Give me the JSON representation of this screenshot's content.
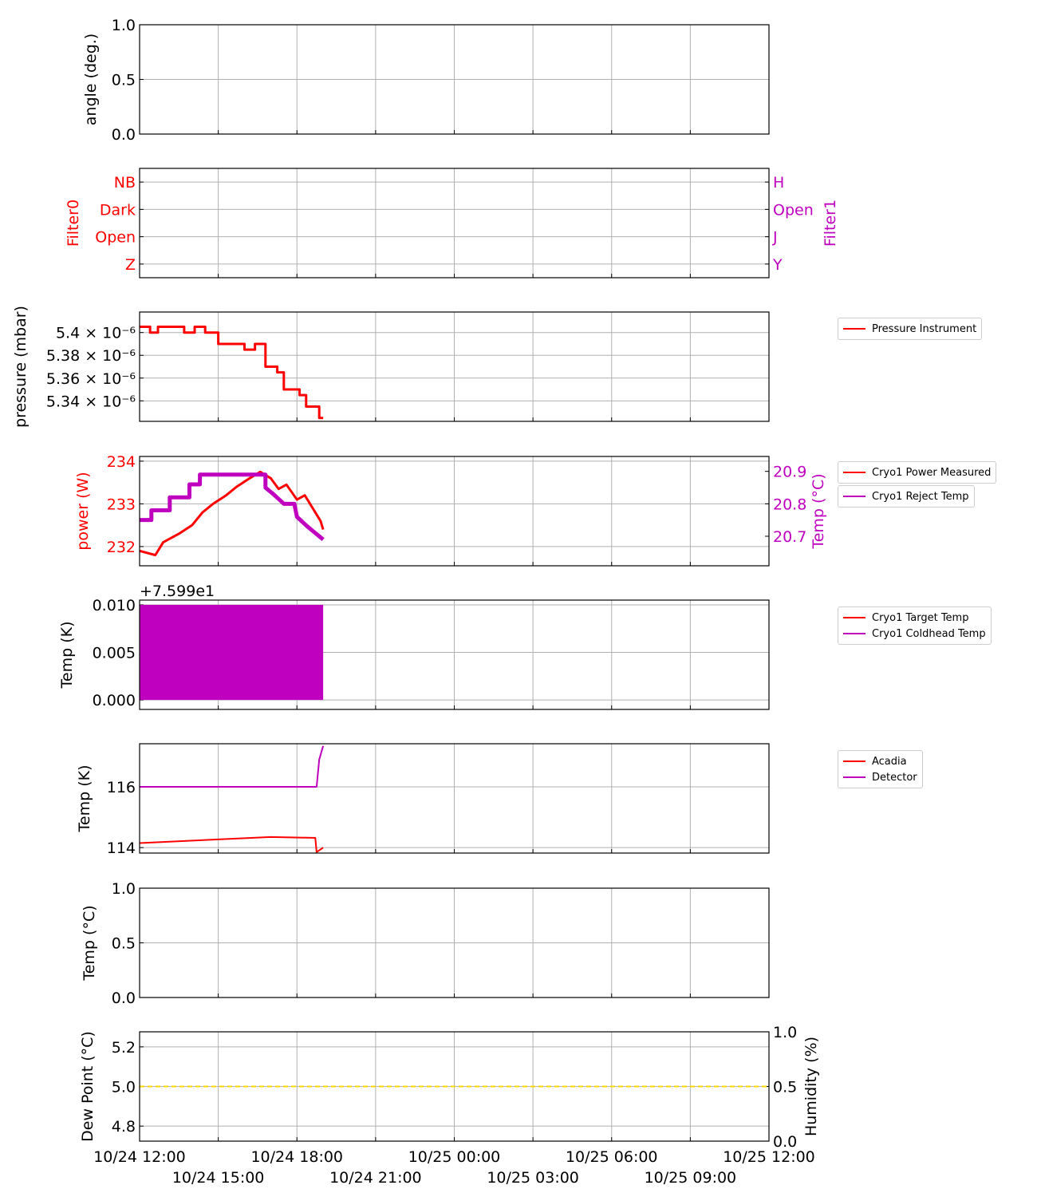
{
  "chart_data": [
    {
      "type": "line",
      "ylabel": "angle (deg.)",
      "ylim": [
        0,
        1
      ],
      "yticks": [
        0,
        0.5,
        1.0
      ],
      "ytick_labels": [
        "0.0",
        "0.5",
        "1.0"
      ],
      "series": []
    },
    {
      "type": "line",
      "ylabel": "Filter0",
      "ylabel_color": "#ff0000",
      "ylim": [
        -0.5,
        3.5
      ],
      "yticks": [
        0,
        1,
        2,
        3
      ],
      "ytick_labels": [
        "Z",
        "Open",
        "Dark",
        "NB"
      ],
      "y2label": "Filter1",
      "y2label_color": "#bf00bf",
      "y2lim": [
        -0.5,
        3.5
      ],
      "y2ticks": [
        0,
        1,
        2,
        3
      ],
      "y2tick_labels": [
        "Y",
        "J",
        "Open",
        "H"
      ],
      "series": []
    },
    {
      "type": "line",
      "ylabel": "pressure (mbar)",
      "ylim": [
        5.322,
        5.418
      ],
      "yticks": [
        5.34,
        5.36,
        5.38,
        5.4
      ],
      "ytick_labels": [
        "5.34 × 10⁻⁶",
        "5.36 × 10⁻⁶",
        "5.38 × 10⁻⁶",
        "5.4 × 10⁻⁶"
      ],
      "series": [
        {
          "name": "Pressure Instrument",
          "color": "#ff0000",
          "width": 3,
          "points": [
            [
              0,
              5.405
            ],
            [
              0.4,
              5.405
            ],
            [
              0.4,
              5.4
            ],
            [
              0.7,
              5.4
            ],
            [
              0.7,
              5.405
            ],
            [
              1.7,
              5.405
            ],
            [
              1.7,
              5.4
            ],
            [
              2.1,
              5.4
            ],
            [
              2.1,
              5.405
            ],
            [
              2.5,
              5.405
            ],
            [
              2.5,
              5.4
            ],
            [
              3.0,
              5.4
            ],
            [
              3.0,
              5.39
            ],
            [
              4.0,
              5.39
            ],
            [
              4.0,
              5.385
            ],
            [
              4.4,
              5.385
            ],
            [
              4.4,
              5.39
            ],
            [
              4.8,
              5.39
            ],
            [
              4.8,
              5.37
            ],
            [
              5.25,
              5.37
            ],
            [
              5.25,
              5.365
            ],
            [
              5.5,
              5.365
            ],
            [
              5.5,
              5.35
            ],
            [
              6.1,
              5.35
            ],
            [
              6.1,
              5.345
            ],
            [
              6.35,
              5.345
            ],
            [
              6.35,
              5.335
            ],
            [
              6.85,
              5.335
            ],
            [
              6.85,
              5.325
            ],
            [
              7.0,
              5.325
            ]
          ]
        }
      ]
    },
    {
      "type": "line",
      "ylabel": "power (W)",
      "ylabel_color": "#ff0000",
      "ylim": [
        231.55,
        234.11
      ],
      "yticks": [
        232,
        233,
        234
      ],
      "ytick_labels": [
        "232",
        "233",
        "234"
      ],
      "y2label": "Temp (°C)",
      "y2label_color": "#bf00bf",
      "y2lim": [
        20.609,
        20.946
      ],
      "y2ticks": [
        20.7,
        20.8,
        20.9
      ],
      "y2tick_labels": [
        "20.7",
        "20.8",
        "20.9"
      ],
      "series": [
        {
          "name": "Cryo1 Power Measured",
          "color": "#ff0000",
          "width": 3,
          "axis": "left",
          "points": [
            [
              0,
              231.9
            ],
            [
              0.6,
              231.8
            ],
            [
              0.9,
              232.1
            ],
            [
              1.5,
              232.3
            ],
            [
              2.0,
              232.5
            ],
            [
              2.4,
              232.8
            ],
            [
              2.8,
              233.0
            ],
            [
              3.3,
              233.2
            ],
            [
              3.7,
              233.4
            ],
            [
              4.2,
              233.6
            ],
            [
              4.6,
              233.75
            ],
            [
              5.0,
              233.6
            ],
            [
              5.3,
              233.35
            ],
            [
              5.6,
              233.45
            ],
            [
              6.0,
              233.1
            ],
            [
              6.3,
              233.2
            ],
            [
              6.6,
              232.9
            ],
            [
              6.9,
              232.6
            ],
            [
              7.0,
              232.4
            ]
          ]
        },
        {
          "name": "Cryo1 Reject Temp",
          "color": "#bf00bf",
          "width": 5,
          "axis": "right",
          "points": [
            [
              0,
              20.75
            ],
            [
              0.45,
              20.75
            ],
            [
              0.45,
              20.78
            ],
            [
              1.15,
              20.78
            ],
            [
              1.15,
              20.82
            ],
            [
              1.9,
              20.82
            ],
            [
              1.9,
              20.86
            ],
            [
              2.3,
              20.86
            ],
            [
              2.3,
              20.89
            ],
            [
              4.8,
              20.89
            ],
            [
              4.8,
              20.85
            ],
            [
              5.1,
              20.83
            ],
            [
              5.5,
              20.8
            ],
            [
              5.9,
              20.8
            ],
            [
              6.0,
              20.76
            ],
            [
              6.4,
              20.73
            ],
            [
              7.0,
              20.69
            ]
          ]
        }
      ]
    },
    {
      "type": "line",
      "ylabel": "Temp (K)",
      "offset_text": "+7.599e1",
      "ylim": [
        -0.001,
        0.0105
      ],
      "yticks": [
        0,
        0.005,
        0.01
      ],
      "ytick_labels": [
        "0.000",
        "0.005",
        "0.010"
      ],
      "series": [
        {
          "name": "Cryo1 Target Temp",
          "color": "#ff0000",
          "width": 2,
          "points": []
        },
        {
          "name": "Cryo1 Coldhead Temp",
          "color": "#bf00bf",
          "band": [
            0,
            0.01
          ],
          "points": [
            [
              0,
              0
            ],
            [
              7.0,
              0
            ]
          ]
        }
      ]
    },
    {
      "type": "line",
      "ylabel": "Temp (K)",
      "ylim": [
        113.82,
        117.42
      ],
      "yticks": [
        114,
        116
      ],
      "ytick_labels": [
        "114",
        "116"
      ],
      "series": [
        {
          "name": "Acadia",
          "color": "#ff0000",
          "width": 2,
          "points": [
            [
              0,
              114.15
            ],
            [
              2.5,
              114.25
            ],
            [
              5.0,
              114.35
            ],
            [
              6.7,
              114.32
            ],
            [
              6.75,
              113.85
            ],
            [
              7.0,
              114.0
            ]
          ]
        },
        {
          "name": "Detector",
          "color": "#bf00bf",
          "width": 2,
          "points": [
            [
              0,
              116.0
            ],
            [
              6.75,
              116.0
            ],
            [
              6.85,
              116.9
            ],
            [
              7.0,
              117.35
            ]
          ]
        }
      ]
    },
    {
      "type": "line",
      "ylabel": "Temp (°C)",
      "ylim": [
        0,
        1
      ],
      "yticks": [
        0,
        0.5,
        1.0
      ],
      "ytick_labels": [
        "0.0",
        "0.5",
        "1.0"
      ],
      "series": []
    },
    {
      "type": "line",
      "ylabel": "Dew Point (°C)",
      "ylim": [
        4.724,
        5.276
      ],
      "yticks": [
        4.8,
        5.0,
        5.2
      ],
      "ytick_labels": [
        "4.8",
        "5.0",
        "5.2"
      ],
      "y2label": "Humidity (%)",
      "y2lim": [
        0,
        1
      ],
      "y2ticks": [
        0,
        0.5,
        1
      ],
      "y2tick_labels": [
        "0.0",
        "0.5",
        "1.0"
      ],
      "series": [
        {
          "name": "Dew Point",
          "color": "#ffd700",
          "width": 2,
          "dash": true,
          "points": [
            [
              0,
              5.0
            ],
            [
              24,
              5.0
            ]
          ]
        }
      ]
    }
  ],
  "x_axis": {
    "xlim_hours": [
      0,
      24
    ],
    "ticks_hours": [
      0,
      3,
      6,
      9,
      12,
      15,
      18,
      21,
      24
    ],
    "tick_labels": [
      "10/24 12:00",
      "10/24 15:00",
      "10/24 18:00",
      "10/24 21:00",
      "10/25 00:00",
      "10/25 03:00",
      "10/25 06:00",
      "10/25 09:00",
      "10/25 12:00"
    ]
  },
  "legends": [
    {
      "panel": 2,
      "entries": [
        {
          "label": "Pressure Instrument",
          "color": "#ff0000"
        }
      ]
    },
    {
      "panel": 3,
      "entries": [
        {
          "label": "Cryo1 Power Measured",
          "color": "#ff0000"
        }
      ]
    },
    {
      "panel": 3,
      "entries": [
        {
          "label": "Cryo1 Reject Temp",
          "color": "#bf00bf"
        }
      ]
    },
    {
      "panel": 4,
      "entries": [
        {
          "label": "Cryo1 Target Temp",
          "color": "#ff0000"
        },
        {
          "label": "Cryo1 Coldhead Temp",
          "color": "#bf00bf"
        }
      ]
    },
    {
      "panel": 5,
      "entries": [
        {
          "label": "Acadia",
          "color": "#ff0000"
        },
        {
          "label": "Detector",
          "color": "#bf00bf"
        }
      ]
    }
  ]
}
